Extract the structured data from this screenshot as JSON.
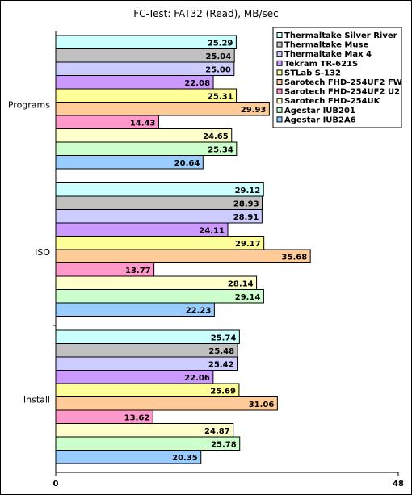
{
  "chart_data": {
    "type": "bar",
    "orientation": "horizontal",
    "title": "FC-Test: FAT32 (Read),  MB/sec",
    "xlim": [
      0,
      48
    ],
    "x_ticks": [
      "0",
      "48"
    ],
    "categories": [
      "Programs",
      "ISO",
      "Install"
    ],
    "legend_position": "top-right",
    "series": [
      {
        "name": "Thermaltake Silver River",
        "color": "#ccffff",
        "values": [
          25.29,
          29.12,
          25.74
        ],
        "labels": [
          "25.29",
          "29.12",
          "25.74"
        ]
      },
      {
        "name": "Thermaltake Muse",
        "color": "#c0c0c0",
        "values": [
          25.04,
          28.93,
          25.48
        ],
        "labels": [
          "25.04",
          "28.93",
          "25.48"
        ]
      },
      {
        "name": "Thermaltake Max 4",
        "color": "#ccccff",
        "values": [
          25.0,
          28.91,
          25.42
        ],
        "labels": [
          "25.00",
          "28.91",
          "25.42"
        ]
      },
      {
        "name": "Tekram TR-621S",
        "color": "#cc99ff",
        "values": [
          22.08,
          24.11,
          22.06
        ],
        "labels": [
          "22.08",
          "24.11",
          "22.06"
        ]
      },
      {
        "name": "STLab S-132",
        "color": "#ffff99",
        "values": [
          25.31,
          29.17,
          25.69
        ],
        "labels": [
          "25.31",
          "29.17",
          "25.69"
        ]
      },
      {
        "name": "Sarotech FHD-254UF2 FW",
        "color": "#ffcc99",
        "values": [
          29.93,
          35.68,
          31.06
        ],
        "labels": [
          "29.93",
          "35.68",
          "31.06"
        ]
      },
      {
        "name": "Sarotech FHD-254UF2 U2",
        "color": "#ff99cc",
        "values": [
          14.43,
          13.77,
          13.62
        ],
        "labels": [
          "14.43",
          "13.77",
          "13.62"
        ]
      },
      {
        "name": "Sarotech FHD-254UK",
        "color": "#ffffcc",
        "values": [
          24.65,
          28.14,
          24.87
        ],
        "labels": [
          "24.65",
          "28.14",
          "24.87"
        ]
      },
      {
        "name": "Agestar IUB201",
        "color": "#ccffcc",
        "values": [
          25.34,
          29.14,
          25.78
        ],
        "labels": [
          "25.34",
          "29.14",
          "25.78"
        ]
      },
      {
        "name": "Agestar IUB2A6",
        "color": "#99ccff",
        "values": [
          20.64,
          22.23,
          20.35
        ],
        "labels": [
          "20.64",
          "22.23",
          "20.35"
        ]
      }
    ]
  }
}
